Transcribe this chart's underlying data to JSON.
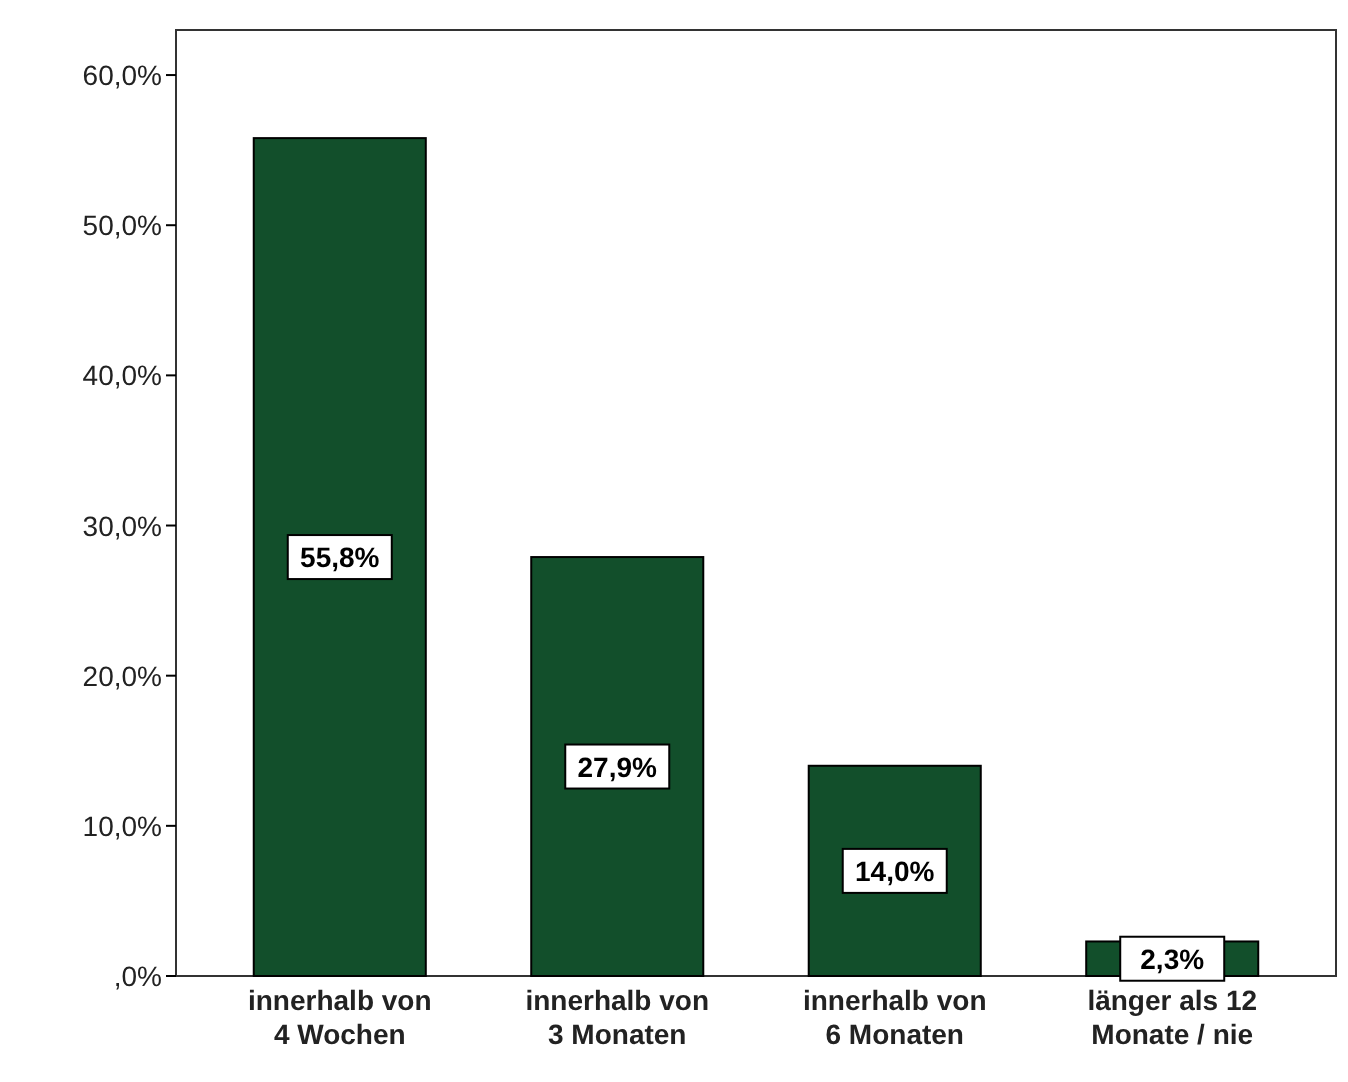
{
  "chart_data": {
    "type": "bar",
    "categories": [
      "innerhalb von\n4 Wochen",
      "innerhalb von\n3 Monaten",
      "innerhalb von\n6 Monaten",
      "länger als 12\nMonate / nie"
    ],
    "values": [
      55.8,
      27.9,
      14.0,
      2.3
    ],
    "value_labels": [
      "55,8%",
      "27,9%",
      "14,0%",
      "2,3%"
    ],
    "color": "#124f2b",
    "ylim": [
      0,
      63
    ],
    "yticks": [
      {
        "value": 0,
        "label": ",0%"
      },
      {
        "value": 10,
        "label": "10,0%"
      },
      {
        "value": 20,
        "label": "20,0%"
      },
      {
        "value": 30,
        "label": "30,0%"
      },
      {
        "value": 40,
        "label": "40,0%"
      },
      {
        "value": 50,
        "label": "50,0%"
      },
      {
        "value": 60,
        "label": "60,0%"
      }
    ],
    "grid": false
  }
}
